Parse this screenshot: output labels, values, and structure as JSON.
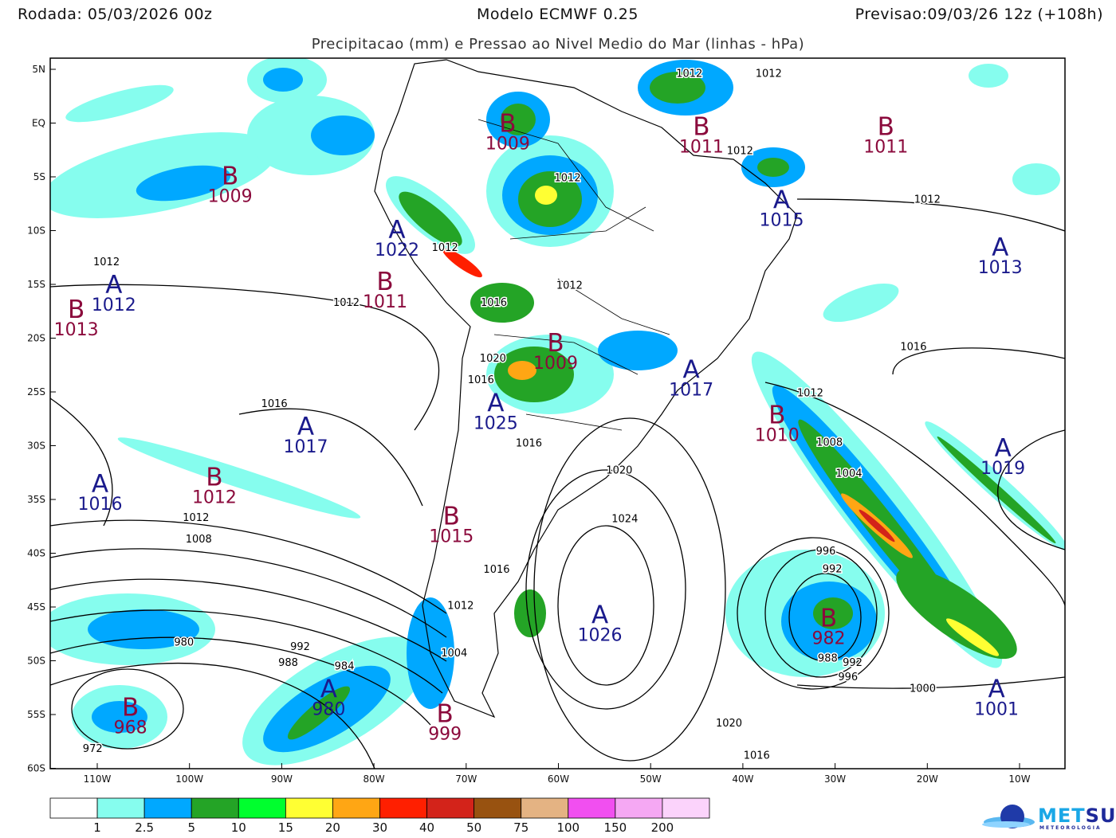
{
  "header": {
    "run": "Rodada: 05/03/2026 00z",
    "model": "Modelo ECMWF 0.25",
    "valid": "Previsao:09/03/26 12z (+108h)",
    "subtitle": "Precipitacao (mm) e Pressao ao Nivel Medio do Mar (linhas - hPa)"
  },
  "map": {
    "projection": "lat-lon",
    "lon_range": [
      -115,
      -5
    ],
    "lat_range": [
      -60,
      6
    ],
    "lat_ticks": [
      {
        "lat": 5,
        "label": "5N"
      },
      {
        "lat": 0,
        "label": "EQ"
      },
      {
        "lat": -5,
        "label": "5S"
      },
      {
        "lat": -10,
        "label": "10S"
      },
      {
        "lat": -15,
        "label": "15S"
      },
      {
        "lat": -20,
        "label": "20S"
      },
      {
        "lat": -25,
        "label": "25S"
      },
      {
        "lat": -30,
        "label": "30S"
      },
      {
        "lat": -35,
        "label": "35S"
      },
      {
        "lat": -40,
        "label": "40S"
      },
      {
        "lat": -45,
        "label": "45S"
      },
      {
        "lat": -50,
        "label": "50S"
      },
      {
        "lat": -55,
        "label": "55S"
      },
      {
        "lat": -60,
        "label": "60S"
      }
    ],
    "lon_ticks": [
      {
        "lon": -110,
        "label": "110W"
      },
      {
        "lon": -100,
        "label": "100W"
      },
      {
        "lon": -90,
        "label": "90W"
      },
      {
        "lon": -80,
        "label": "80W"
      },
      {
        "lon": -70,
        "label": "70W"
      },
      {
        "lon": -60,
        "label": "60W"
      },
      {
        "lon": -50,
        "label": "50W"
      },
      {
        "lon": -40,
        "label": "40W"
      },
      {
        "lon": -30,
        "label": "30W"
      },
      {
        "lon": -20,
        "label": "20W"
      },
      {
        "lon": -10,
        "label": "10W"
      }
    ],
    "high_color": "#1a1a8c",
    "low_color": "#8b0a3c",
    "pressure_centers": [
      {
        "type": "B",
        "value": "1009",
        "lon": -65.5,
        "lat": 0.0
      },
      {
        "type": "B",
        "value": "1011",
        "lon": -44.5,
        "lat": -0.3
      },
      {
        "type": "B",
        "value": "1011",
        "lon": -24.5,
        "lat": -0.3
      },
      {
        "type": "B",
        "value": "1009",
        "lon": -95.6,
        "lat": -4.9
      },
      {
        "type": "A",
        "value": "1015",
        "lon": -35.8,
        "lat": -7.1
      },
      {
        "type": "A",
        "value": "1022",
        "lon": -77.5,
        "lat": -9.9
      },
      {
        "type": "B",
        "value": "1011",
        "lon": -78.8,
        "lat": -13.5
      },
      {
        "type": "A",
        "value": "1013",
        "lon": -12.1,
        "lat": -11.5
      },
      {
        "type": "A",
        "value": "1012",
        "lon": -108.2,
        "lat": -15.0
      },
      {
        "type": "B",
        "value": "1013",
        "lon": -110.2,
        "lat": -17.3
      },
      {
        "type": "B",
        "value": "1009",
        "lon": -60.3,
        "lat": -20.4
      },
      {
        "type": "A",
        "value": "1017",
        "lon": -45.6,
        "lat": -22.9
      },
      {
        "type": "A",
        "value": "1025",
        "lon": -66.8,
        "lat": -26.0
      },
      {
        "type": "B",
        "value": "1010",
        "lon": -36.3,
        "lat": -27.1
      },
      {
        "type": "A",
        "value": "1017",
        "lon": -87.4,
        "lat": -28.2
      },
      {
        "type": "A",
        "value": "1019",
        "lon": -11.8,
        "lat": -30.2
      },
      {
        "type": "B",
        "value": "1012",
        "lon": -97.3,
        "lat": -32.9
      },
      {
        "type": "A",
        "value": "1016",
        "lon": -109.7,
        "lat": -33.5
      },
      {
        "type": "B",
        "value": "1015",
        "lon": -71.6,
        "lat": -36.5
      },
      {
        "type": "A",
        "value": "1026",
        "lon": -55.5,
        "lat": -45.7
      },
      {
        "type": "B",
        "value": "982",
        "lon": -30.7,
        "lat": -46.0
      },
      {
        "type": "A",
        "value": "1001",
        "lon": -12.5,
        "lat": -52.6
      },
      {
        "type": "B",
        "value": "968",
        "lon": -106.4,
        "lat": -54.3
      },
      {
        "type": "A",
        "value": "980",
        "lon": -84.9,
        "lat": -52.6
      },
      {
        "type": "B",
        "value": "999",
        "lon": -72.3,
        "lat": -54.9
      }
    ],
    "isobar_labels": [
      {
        "value": "1012",
        "lon": -45.8,
        "lat": 4.6
      },
      {
        "value": "1012",
        "lon": -37.2,
        "lat": 4.6
      },
      {
        "value": "1012",
        "lon": -41.0,
        "lat": -2.6
      },
      {
        "value": "1012",
        "lon": -59.0,
        "lat": -5.1
      },
      {
        "value": "1012",
        "lon": -20.0,
        "lat": -7.1
      },
      {
        "value": "1012",
        "lon": -72.3,
        "lat": -11.6
      },
      {
        "value": "1012",
        "lon": -58.8,
        "lat": -15.1
      },
      {
        "value": "1012",
        "lon": -109.0,
        "lat": -14.7
      },
      {
        "value": "1012",
        "lon": -82.3,
        "lat": -16.7
      },
      {
        "value": "1016",
        "lon": -67.0,
        "lat": -16.7
      },
      {
        "value": "1016",
        "lon": -21.5,
        "lat": -20.8
      },
      {
        "value": "1020",
        "lon": -67.1,
        "lat": -21.9
      },
      {
        "value": "1016",
        "lon": -68.4,
        "lat": -23.9
      },
      {
        "value": "1012",
        "lon": -32.7,
        "lat": -25.1
      },
      {
        "value": "1016",
        "lon": -90.8,
        "lat": -26.1
      },
      {
        "value": "1016",
        "lon": -63.2,
        "lat": -29.2
      },
      {
        "value": "1008",
        "lon": -30.6,
        "lat": -29.7
      },
      {
        "value": "1020",
        "lon": -53.4,
        "lat": -32.3
      },
      {
        "value": "1004",
        "lon": -28.5,
        "lat": -32.6
      },
      {
        "value": "1012",
        "lon": -99.3,
        "lat": -36.1
      },
      {
        "value": "1024",
        "lon": -52.8,
        "lat": -36.8
      },
      {
        "value": "1008",
        "lon": -99.0,
        "lat": -38.7
      },
      {
        "value": "996",
        "lon": -31.0,
        "lat": -39.8
      },
      {
        "value": "992",
        "lon": -30.3,
        "lat": -40.9
      },
      {
        "value": "1016",
        "lon": -66.7,
        "lat": -41.5
      },
      {
        "value": "1012",
        "lon": -70.6,
        "lat": -44.9
      },
      {
        "value": "980",
        "lon": -100.6,
        "lat": -48.3
      },
      {
        "value": "992",
        "lon": -88.0,
        "lat": -48.7
      },
      {
        "value": "988",
        "lon": -89.3,
        "lat": -50.2
      },
      {
        "value": "988",
        "lon": -30.8,
        "lat": -48.6
      },
      {
        "value": "984",
        "lon": -83.2,
        "lat": -51.1
      },
      {
        "value": "992",
        "lon": -28.8,
        "lat": -50.2
      },
      {
        "value": "996",
        "lon": -28.6,
        "lat": -51.5
      },
      {
        "value": "1000",
        "lon": -20.5,
        "lat": -52.6
      },
      {
        "value": "1004",
        "lon": -71.3,
        "lat": -49.3
      },
      {
        "value": "1020",
        "lon": -41.5,
        "lat": -55.8
      },
      {
        "value": "1016",
        "lon": -38.5,
        "lat": -58.8
      },
      {
        "value": "972",
        "lon": -110.5,
        "lat": -58.2
      }
    ]
  },
  "colorbar": {
    "unit": "mm",
    "colors": [
      "#ffffff",
      "#86fdee",
      "#00a8ff",
      "#24a426",
      "#00ff2e",
      "#ffff33",
      "#ffa614",
      "#ff1f00",
      "#d3231a",
      "#985210",
      "#e4b383",
      "#f14ff0",
      "#f5a8f3",
      "#fbd3fb"
    ],
    "labels": [
      "1",
      "2.5",
      "5",
      "10",
      "15",
      "20",
      "30",
      "40",
      "50",
      "75",
      "100",
      "150",
      "200"
    ]
  },
  "logo": {
    "text_a": "MET",
    "text_b": "SUL",
    "sub": "METEOROLOGIA"
  }
}
